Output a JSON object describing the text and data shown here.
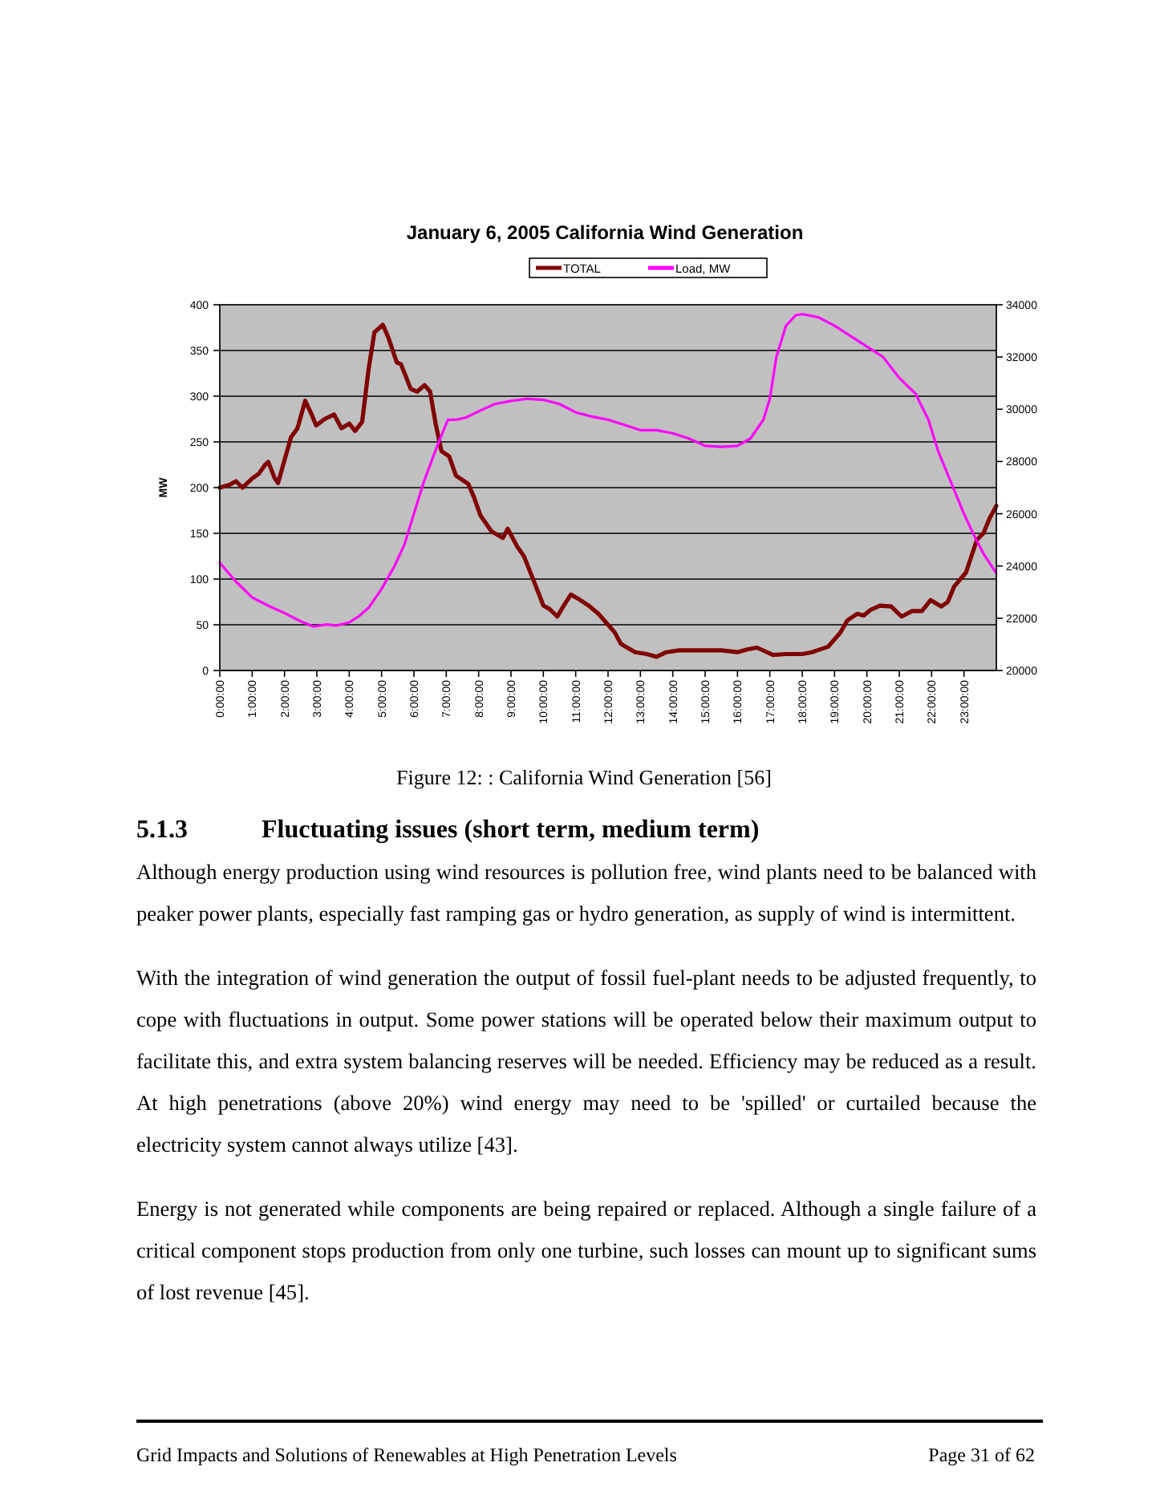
{
  "chart_data": {
    "type": "line",
    "title": "January 6, 2005  California Wind Generation",
    "ylabel": "MW",
    "xlim": [
      0,
      24
    ],
    "xticks": [
      {
        "value": 0,
        "label": "0:00:00"
      },
      {
        "value": 1,
        "label": "1:00:00"
      },
      {
        "value": 2,
        "label": "2:00:00"
      },
      {
        "value": 3,
        "label": "3:00:00"
      },
      {
        "value": 4,
        "label": "4:00:00"
      },
      {
        "value": 5,
        "label": "5:00:00"
      },
      {
        "value": 6,
        "label": "6:00:00"
      },
      {
        "value": 7,
        "label": "7:00:00"
      },
      {
        "value": 8,
        "label": "8:00:00"
      },
      {
        "value": 9,
        "label": "9:00:00"
      },
      {
        "value": 10,
        "label": "10:00:00"
      },
      {
        "value": 11,
        "label": "11:00:00"
      },
      {
        "value": 12,
        "label": "12:00:00"
      },
      {
        "value": 13,
        "label": "13:00:00"
      },
      {
        "value": 14,
        "label": "14:00:00"
      },
      {
        "value": 15,
        "label": "15:00:00"
      },
      {
        "value": 16,
        "label": "16:00:00"
      },
      {
        "value": 17,
        "label": "17:00:00"
      },
      {
        "value": 18,
        "label": "18:00:00"
      },
      {
        "value": 19,
        "label": "19:00:00"
      },
      {
        "value": 20,
        "label": "20:00:00"
      },
      {
        "value": 21,
        "label": "21:00:00"
      },
      {
        "value": 22,
        "label": "22:00:00"
      },
      {
        "value": 23,
        "label": "23:00:00"
      }
    ],
    "ylim": [
      0,
      400
    ],
    "yticks": [
      0,
      50,
      100,
      150,
      200,
      250,
      300,
      350,
      400
    ],
    "y2lim": [
      20000,
      34000
    ],
    "y2ticks": [
      20000,
      22000,
      24000,
      26000,
      28000,
      30000,
      32000,
      34000
    ],
    "grid": "y",
    "legend": "top",
    "marker": "none",
    "line_style": "solid",
    "series": [
      {
        "name": "TOTAL",
        "color": "#800000",
        "x": [
          0,
          0.3,
          0.5,
          0.7,
          1,
          1.2,
          1.4,
          1.5,
          1.7,
          1.8,
          2,
          2.2,
          2.4,
          2.64,
          2.8,
          2.98,
          3.24,
          3.53,
          3.76,
          4,
          4.18,
          4.4,
          4.6,
          4.78,
          5.04,
          5.2,
          5.47,
          5.6,
          5.9,
          6.1,
          6.33,
          6.5,
          6.67,
          6.85,
          7.09,
          7.3,
          7.68,
          7.85,
          8.05,
          8.4,
          8.6,
          8.75,
          8.9,
          9.2,
          9.4,
          9.67,
          10,
          10.2,
          10.43,
          10.65,
          10.85,
          11.1,
          11.4,
          11.7,
          12,
          12.2,
          12.4,
          12.84,
          13.2,
          13.5,
          13.8,
          14.2,
          14.6,
          15,
          15.5,
          16,
          16.3,
          16.6,
          17.1,
          17.5,
          18,
          18.3,
          18.8,
          19.17,
          19.4,
          19.7,
          19.9,
          20.1,
          20.4,
          20.75,
          21.07,
          21.4,
          21.7,
          21.97,
          22.3,
          22.5,
          22.7,
          23.06,
          23.4,
          23.6,
          23.8,
          24
        ],
        "values": [
          200,
          203,
          207,
          200,
          210,
          215,
          225,
          228,
          210,
          205,
          230,
          255,
          265,
          295,
          283,
          268,
          275,
          280,
          265,
          270,
          262,
          272,
          330,
          370,
          378,
          365,
          337,
          335,
          308,
          305,
          312,
          305,
          270,
          240,
          234,
          213,
          204,
          190,
          170,
          152,
          148,
          145,
          155,
          135,
          125,
          101,
          71,
          67,
          59,
          72,
          83,
          78,
          71,
          62,
          50,
          42,
          29,
          20,
          18,
          15,
          20,
          22,
          22,
          22,
          22,
          20,
          23,
          25,
          17,
          18,
          18,
          20,
          26,
          41,
          55,
          62,
          60,
          66,
          71,
          70,
          59,
          65,
          65,
          77,
          70,
          75,
          92,
          107,
          143,
          150,
          167,
          180
        ]
      },
      {
        "name": "Load, MW",
        "color": "#ff00ff",
        "axis": "y2",
        "x": [
          0,
          0.5,
          1,
          1.5,
          2,
          2.5,
          2.9,
          3.3,
          3.6,
          4,
          4.3,
          4.6,
          5,
          5.4,
          5.7,
          6,
          6.3,
          6.6,
          6.85,
          7.05,
          7.3,
          7.6,
          8,
          8.5,
          9,
          9.5,
          10,
          10.5,
          11,
          11.5,
          12,
          12.5,
          13,
          13.5,
          14,
          14.5,
          15,
          15.5,
          16,
          16.4,
          16.8,
          17,
          17.2,
          17.5,
          17.8,
          18,
          18.5,
          19,
          19.5,
          20,
          20.5,
          21,
          21.5,
          21.9,
          22.2,
          22.6,
          23,
          23.3,
          23.6,
          24
        ],
        "values": [
          24120,
          23400,
          22800,
          22480,
          22200,
          21880,
          21680,
          21760,
          21720,
          21840,
          22080,
          22400,
          23120,
          24000,
          24800,
          26000,
          27200,
          28200,
          29000,
          29600,
          29600,
          29680,
          29920,
          30200,
          30320,
          30400,
          30360,
          30200,
          29880,
          29720,
          29600,
          29400,
          29200,
          29200,
          29080,
          28880,
          28600,
          28560,
          28600,
          28880,
          29600,
          30400,
          32000,
          33200,
          33600,
          33640,
          33520,
          33200,
          32800,
          32400,
          32000,
          31200,
          30600,
          29600,
          28400,
          27200,
          26000,
          25200,
          24480,
          23720
        ]
      }
    ],
    "annotations": [
      "Figure 12:  : California Wind Generation [56]",
      "5.1.3 Fluctuating issues (short term, medium term)",
      "Although energy production using wind resources is pollution free, wind plants need to be balanced with peaker power plants, especially fast ramping gas or hydro generation, as supply of wind is intermittent.",
      "With the integration of wind generation the output of fossil fuel-plant needs to be adjusted frequently, to cope with fluctuations in output. Some power stations will be operated below their maximum output to facilitate this, and extra system balancing reserves will be needed. Efficiency may be reduced as a result. At high penetrations (above 20%) wind energy may need to be 'spilled' or curtailed because the electricity system cannot always utilize [43].",
      "Energy is not generated while components are being repaired or replaced. Although a single failure of a critical component stops production from only one turbine, such losses can mount up to significant sums of lost revenue [45].",
      "Grid Impacts and Solutions of Renewables at High Penetration Levels",
      "Page 31 of 62"
    ]
  }
}
